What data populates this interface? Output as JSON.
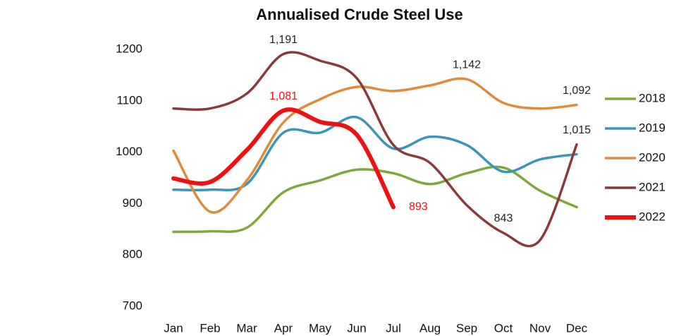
{
  "chart_data": {
    "type": "line",
    "title": "Annualised Crude Steel Use",
    "categories": [
      "Jan",
      "Feb",
      "Mar",
      "Apr",
      "May",
      "Jun",
      "Jul",
      "Aug",
      "Sep",
      "Oct",
      "Nov",
      "Dec"
    ],
    "ylim": [
      700,
      1200
    ],
    "yticks": [
      700,
      800,
      900,
      1000,
      1100,
      1200
    ],
    "grid": false,
    "legend": "right",
    "series": [
      {
        "name": "2018",
        "color": "#7fa83a",
        "values": [
          845,
          846,
          853,
          922,
          945,
          966,
          959,
          938,
          959,
          970,
          925,
          893
        ]
      },
      {
        "name": "2019",
        "color": "#3b95b8",
        "values": [
          927,
          927,
          938,
          1038,
          1038,
          1068,
          1007,
          1030,
          1014,
          962,
          986,
          996
        ]
      },
      {
        "name": "2020",
        "color": "#e08a3c",
        "values": [
          1003,
          884,
          945,
          1058,
          1103,
          1127,
          1119,
          1130,
          1142,
          1096,
          1085,
          1092
        ],
        "value_labels": [
          null,
          null,
          null,
          null,
          null,
          null,
          null,
          null,
          "1,142",
          null,
          null,
          "1,092"
        ]
      },
      {
        "name": "2021",
        "color": "#8b3a3a",
        "values": [
          1085,
          1085,
          1114,
          1191,
          1178,
          1144,
          1014,
          979,
          897,
          843,
          829,
          1015
        ],
        "value_labels": [
          null,
          null,
          null,
          "1,191",
          null,
          null,
          null,
          null,
          null,
          "843",
          null,
          "1,015"
        ]
      },
      {
        "name": "2022",
        "color": "#ee1111",
        "values": [
          949,
          942,
          1004,
          1081,
          1059,
          1034,
          893,
          null,
          null,
          null,
          null,
          null
        ],
        "value_labels": [
          null,
          null,
          null,
          "1,081",
          null,
          null,
          "893",
          null,
          null,
          null,
          null,
          null
        ]
      }
    ]
  }
}
